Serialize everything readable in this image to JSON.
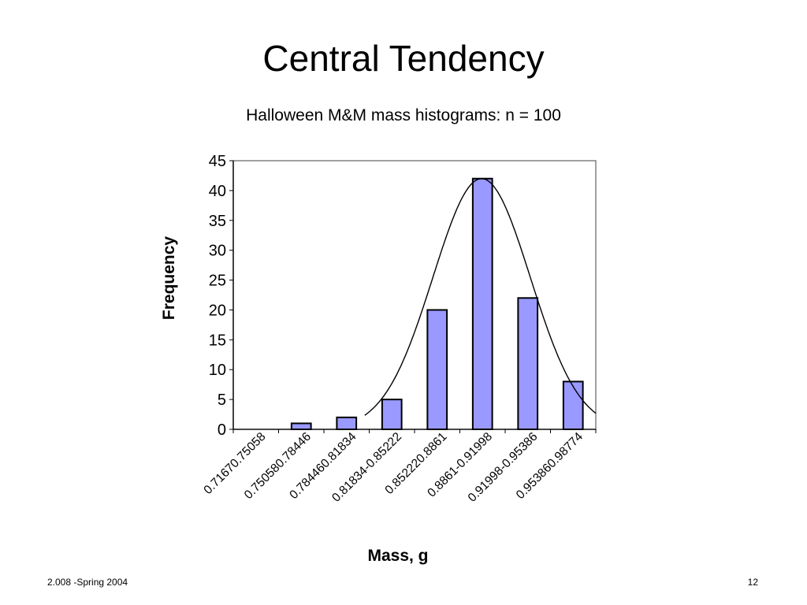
{
  "slide": {
    "title": "Central Tendency",
    "footer_left": "2.008 -Spring 2004",
    "page_number": "12"
  },
  "chart_data": {
    "type": "bar",
    "title": "Halloween M&M mass histograms: n = 100",
    "xlabel": "Mass, g",
    "ylabel": "Frequency",
    "ylim": [
      0,
      45
    ],
    "yticks": [
      0,
      5,
      10,
      15,
      20,
      25,
      30,
      35,
      40,
      45
    ],
    "categories": [
      "0.71670.75058",
      "0.750580.78446",
      "0.784460.81834",
      "0.81834-0.85222",
      "0.852220.8861",
      "0.8861-0.91998",
      "0.91998-0.95386",
      "0.953860.98774"
    ],
    "series": [
      {
        "values": [
          0,
          1,
          2,
          5,
          20,
          42,
          22,
          8
        ]
      }
    ],
    "bar_color": "#9999ff",
    "fit_curve": true,
    "grid": false,
    "legend": "none"
  }
}
